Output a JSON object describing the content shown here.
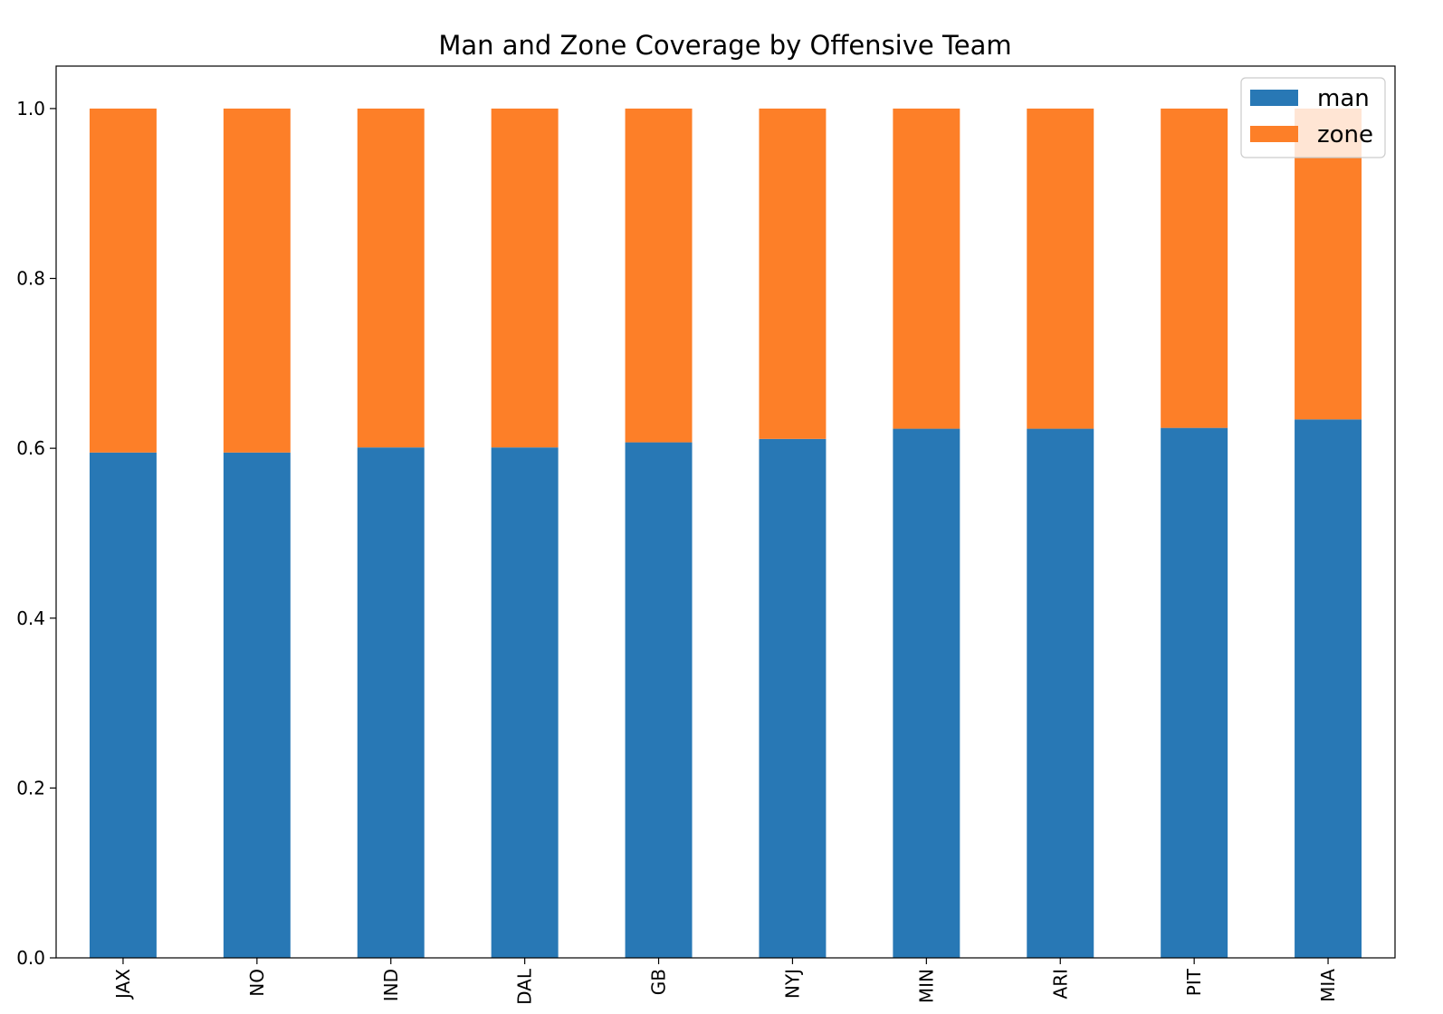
{
  "chart_data": {
    "type": "bar",
    "stacked": true,
    "title": "Man and Zone Coverage by Offensive Team",
    "xlabel": "",
    "ylabel": "",
    "categories": [
      "JAX",
      "NO",
      "IND",
      "DAL",
      "GB",
      "NYJ",
      "MIN",
      "ARI",
      "PIT",
      "MIA"
    ],
    "series": [
      {
        "name": "man",
        "color": "#2878b5",
        "values": [
          0.595,
          0.595,
          0.601,
          0.601,
          0.607,
          0.611,
          0.623,
          0.623,
          0.624,
          0.634
        ]
      },
      {
        "name": "zone",
        "color": "#fd7f28",
        "values": [
          0.405,
          0.405,
          0.399,
          0.399,
          0.393,
          0.389,
          0.377,
          0.377,
          0.376,
          0.366
        ]
      }
    ],
    "ylim": [
      0,
      1.05
    ],
    "yticks": [
      "0.0",
      "0.2",
      "0.4",
      "0.6",
      "0.8",
      "1.0"
    ],
    "ytick_values": [
      0,
      0.2,
      0.4,
      0.6,
      0.8,
      1.0
    ],
    "grid": false,
    "legend_position": "top-right"
  }
}
